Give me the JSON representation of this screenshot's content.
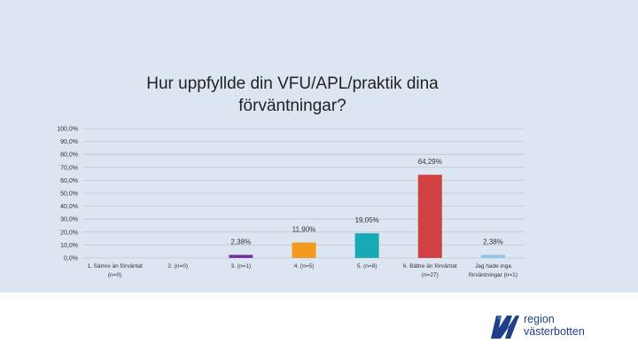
{
  "brand": {
    "line1": "region",
    "line2": "västerbotten",
    "color": "#1f3f8a"
  },
  "chart_data": {
    "type": "bar",
    "title": "Hur uppfyllde din VFU/APL/praktik dina förväntningar?",
    "categories": [
      "1. Sämre än förväntat (n=0)",
      "2. (n=0)",
      "3. (n=1)",
      "4. (n=5)",
      "5. (n=8)",
      "6. Bättre än förväntat (n=27)",
      "Jag hade inga förväntningar (n=1)"
    ],
    "category_lines": [
      [
        "1. Sämre än förväntat",
        "(n=0)"
      ],
      [
        "2. (n=0)"
      ],
      [
        "3. (n=1)"
      ],
      [
        "4. (n=5)"
      ],
      [
        "5. (n=8)"
      ],
      [
        "6. Bättre än förväntat",
        "(n=27)"
      ],
      [
        "Jag hade inga",
        "förväntningar (n=1)"
      ]
    ],
    "values": [
      0,
      0,
      2.38,
      11.9,
      19.05,
      64.29,
      2.38
    ],
    "data_labels": [
      "",
      "",
      "2,38%",
      "11,90%",
      "19,05%",
      "64,29%",
      "2,38%"
    ],
    "colors": [
      "#1f4e79",
      "#2e75b6",
      "#7030a0",
      "#f39a1e",
      "#17a9b6",
      "#d24141",
      "#8ec3ea"
    ],
    "ylim": [
      0,
      100
    ],
    "yticks": [
      "0,0%",
      "10,0%",
      "20,0%",
      "30,0%",
      "40,0%",
      "50,0%",
      "60,0%",
      "70,0%",
      "80,0%",
      "90,0%",
      "100,0%"
    ],
    "grid": true,
    "legend": "none",
    "xlabel": "",
    "ylabel": ""
  }
}
